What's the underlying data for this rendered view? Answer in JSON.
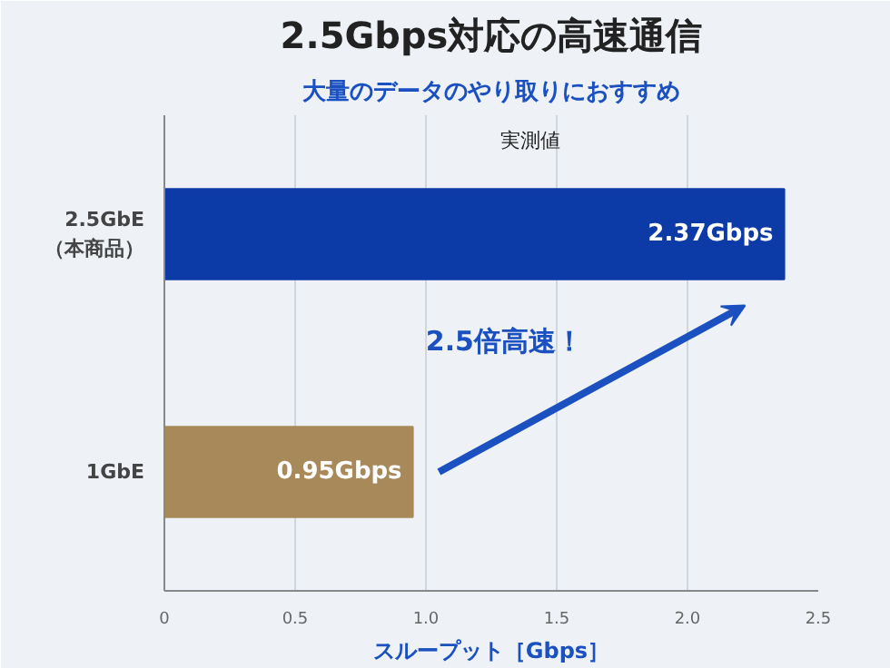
{
  "chart_data": {
    "type": "bar",
    "orientation": "horizontal",
    "title": "2.5Gbps対応の高速通信",
    "subtitle": "大量のデータのやり取りにおすすめ",
    "xlabel": "スループット［Gbps］",
    "categories": [
      "2.5GbE\n（本商品）",
      "1GbE"
    ],
    "values": [
      2.37,
      0.95
    ],
    "colors": [
      "#0c3aa6",
      "#a8895a"
    ],
    "value_labels": [
      "2.37Gbps",
      "0.95Gbps"
    ],
    "xlim": [
      0,
      2.5
    ],
    "xticks": [
      0,
      0.5,
      {
        "value": 1,
        "label": "1.0"
      },
      1.5,
      {
        "value": 2,
        "label": "2.0"
      },
      2.5
    ],
    "grid": "x",
    "annotations": [
      "実測値",
      "2.5倍高速！"
    ]
  }
}
